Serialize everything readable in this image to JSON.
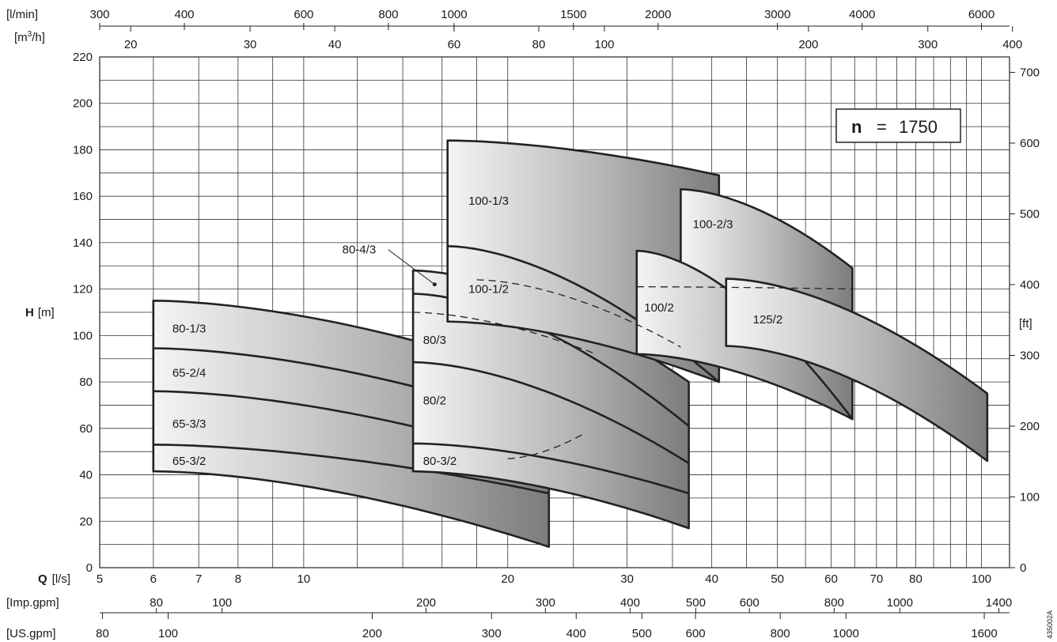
{
  "chart_data": {
    "type": "area",
    "title": "",
    "speed_label": {
      "n": "n",
      "eq": "=",
      "value": "1750"
    },
    "code": "435002A",
    "x_axis": {
      "scale": "log",
      "label_prefix": "Q",
      "unit": "[l/s]",
      "range": [
        5,
        110
      ],
      "ticks": [
        5,
        6,
        7,
        8,
        10,
        20,
        30,
        40,
        50,
        60,
        70,
        80,
        100
      ],
      "minor": [
        9,
        12,
        14,
        16,
        18,
        25,
        35,
        45,
        55,
        65,
        75,
        85,
        90,
        95
      ]
    },
    "y_axis": {
      "label_prefix": "H",
      "unit": "[m]",
      "range": [
        0,
        220
      ],
      "ticks": [
        0,
        20,
        40,
        60,
        80,
        100,
        120,
        140,
        160,
        180,
        200,
        220
      ]
    },
    "right_axis": {
      "unit": "[ft]",
      "ticks": [
        0,
        100,
        200,
        300,
        400,
        500,
        600,
        700
      ]
    },
    "top_axes": [
      {
        "unit": "[l/min]",
        "ticks": [
          300,
          400,
          600,
          800,
          1000,
          1500,
          2000,
          3000,
          4000,
          6000
        ]
      },
      {
        "unit": "[m3/h]",
        "unit_base": "[m",
        "unit_sup": "3",
        "unit_tail": "/h]",
        "ticks": [
          20,
          30,
          40,
          60,
          80,
          100,
          200,
          300,
          400
        ]
      }
    ],
    "bottom_axes": [
      {
        "unit": "[Imp.gpm]",
        "ticks": [
          80,
          100,
          200,
          300,
          400,
          500,
          600,
          800,
          1000,
          1400
        ]
      },
      {
        "unit": "[US.gpm]",
        "ticks": [
          80,
          100,
          200,
          300,
          400,
          500,
          600,
          800,
          1000,
          1600
        ]
      }
    ],
    "pump_groups": [
      {
        "q_left": 6,
        "q_right": 23,
        "tops": [
          {
            "hl": 115,
            "hr": 80
          },
          {
            "hl": 94.5,
            "hr": 61
          },
          {
            "hl": 76,
            "hr": 45
          },
          {
            "hl": 53,
            "hr": 32
          }
        ],
        "bottom": {
          "hl": 41.5,
          "hr": 9
        },
        "labels": [
          {
            "text": "80-1/3",
            "q": 6.4,
            "h": 103
          },
          {
            "text": "65-2/4",
            "q": 6.4,
            "h": 84
          },
          {
            "text": "65-3/3",
            "q": 6.4,
            "h": 62
          },
          {
            "text": "65-3/2",
            "q": 6.4,
            "h": 46
          }
        ]
      },
      {
        "q_left": 14.5,
        "q_right": 37,
        "tops": [
          {
            "hl": 128,
            "hr": 80
          },
          {
            "hl": 118,
            "hr": 61
          },
          {
            "hl": 88.5,
            "hr": 45
          },
          {
            "hl": 53.5,
            "hr": 32
          }
        ],
        "bottom": {
          "hl": 41.5,
          "hr": 17
        },
        "labels": [
          {
            "text": "80/3",
            "q": 15,
            "h": 98
          },
          {
            "text": "80/2",
            "q": 15,
            "h": 72
          },
          {
            "text": "80-3/2",
            "q": 15,
            "h": 46
          }
        ]
      },
      {
        "q_left": 16.3,
        "q_right": 41,
        "tops": [
          {
            "hl": 184,
            "hr": 169
          },
          {
            "hl": 138.5,
            "hr": 80
          }
        ],
        "bottom": {
          "hl": 106,
          "hr": 80
        },
        "labels": [
          {
            "text": "100-1/3",
            "q": 17.5,
            "h": 158
          },
          {
            "text": "100-1/2",
            "q": 17.5,
            "h": 120
          }
        ]
      },
      {
        "q_left": 36,
        "q_right": 64.5,
        "tops": [
          {
            "hl": 163,
            "hr": 129
          }
        ],
        "bottom": {
          "hl": 120,
          "hr": 64
        },
        "labels": [
          {
            "text": "100-2/3",
            "q": 37.5,
            "h": 148
          }
        ]
      },
      {
        "q_left": 31,
        "q_right": 64.5,
        "tops": [
          {
            "hl": 136.5,
            "hr": 64
          }
        ],
        "bottom": {
          "hl": 92,
          "hr": 64
        },
        "labels": [
          {
            "text": "100/2",
            "q": 31.8,
            "h": 112
          }
        ]
      },
      {
        "q_left": 42,
        "q_right": 102,
        "tops": [
          {
            "hl": 124.5,
            "hr": 75
          }
        ],
        "bottom": {
          "hl": 95.5,
          "hr": 46
        },
        "labels": [
          {
            "text": "125/2",
            "q": 46,
            "h": 107
          }
        ]
      }
    ],
    "extra_label": {
      "text": "80-4/3",
      "q": 11.4,
      "h": 137,
      "pointer_q": 15.6,
      "pointer_h": 122
    }
  }
}
